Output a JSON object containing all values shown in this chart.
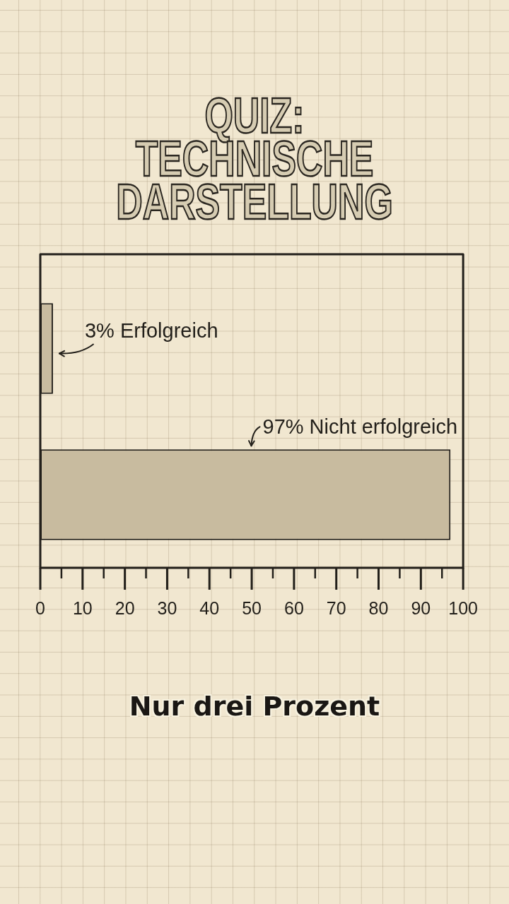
{
  "chart_data": {
    "type": "bar",
    "orientation": "horizontal",
    "title": "QUIZ: TECHNISCHE DARSTELLUNG",
    "categories": [
      null,
      null
    ],
    "values": [
      3,
      97
    ],
    "value_labels": [
      "3% Erfolgreich",
      "97% Nicht erfolgreich"
    ],
    "color": "#c8bb9f",
    "xlim": [
      0,
      100
    ],
    "xticks": [
      0,
      {
        "value": 5,
        "label": null
      },
      10,
      {
        "value": 15,
        "label": null
      },
      20,
      {
        "value": 25,
        "label": null
      },
      30,
      {
        "value": 35,
        "label": null
      },
      40,
      {
        "value": 45,
        "label": null
      },
      50,
      {
        "value": 55,
        "label": null
      },
      60,
      {
        "value": 65,
        "label": null
      },
      70,
      {
        "value": 75,
        "label": null
      },
      80,
      {
        "value": 85,
        "label": null
      },
      90,
      {
        "value": 95,
        "label": null
      },
      100
    ],
    "tick_labels": "x",
    "annotations": [
      "Nur drei Prozent"
    ]
  }
}
